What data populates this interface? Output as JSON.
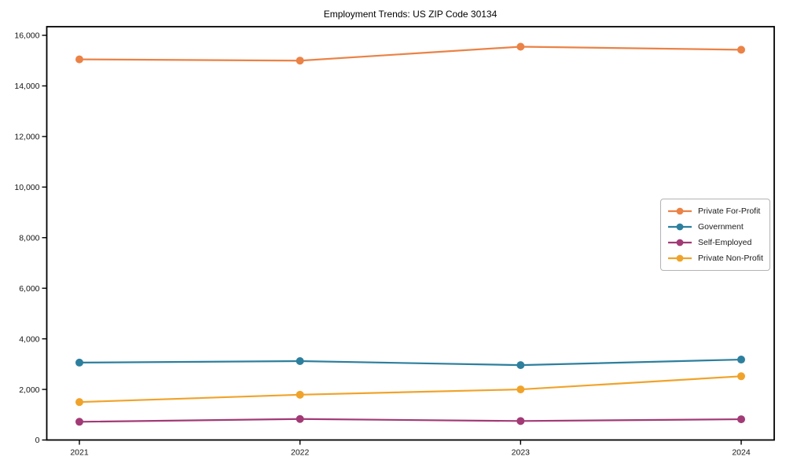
{
  "chart_data": {
    "type": "line",
    "title": "Employment Trends: US ZIP Code 30134",
    "categories": [
      "2021",
      "2022",
      "2023",
      "2024"
    ],
    "series": [
      {
        "name": "Private For-Profit",
        "color": "#EB8246",
        "values": [
          15050,
          15000,
          15550,
          15430
        ]
      },
      {
        "name": "Government",
        "color": "#2D7F9E",
        "values": [
          3060,
          3120,
          2960,
          3180
        ]
      },
      {
        "name": "Self-Employed",
        "color": "#A23A76",
        "values": [
          720,
          830,
          750,
          820
        ]
      },
      {
        "name": "Private Non-Profit",
        "color": "#F0A32A",
        "values": [
          1500,
          1790,
          2000,
          2520
        ]
      }
    ],
    "xlabel": "",
    "ylabel": "",
    "ylim": [
      0,
      16340
    ],
    "yticks": [
      0,
      2000,
      4000,
      6000,
      8000,
      10000,
      12000,
      14000,
      16000
    ],
    "ytick_labels": [
      "0",
      "2,000",
      "4,000",
      "6,000",
      "8,000",
      "10,000",
      "12,000",
      "14,000",
      "16,000"
    ],
    "grid": false,
    "legend_position": "right",
    "axis_color": "#000000"
  }
}
